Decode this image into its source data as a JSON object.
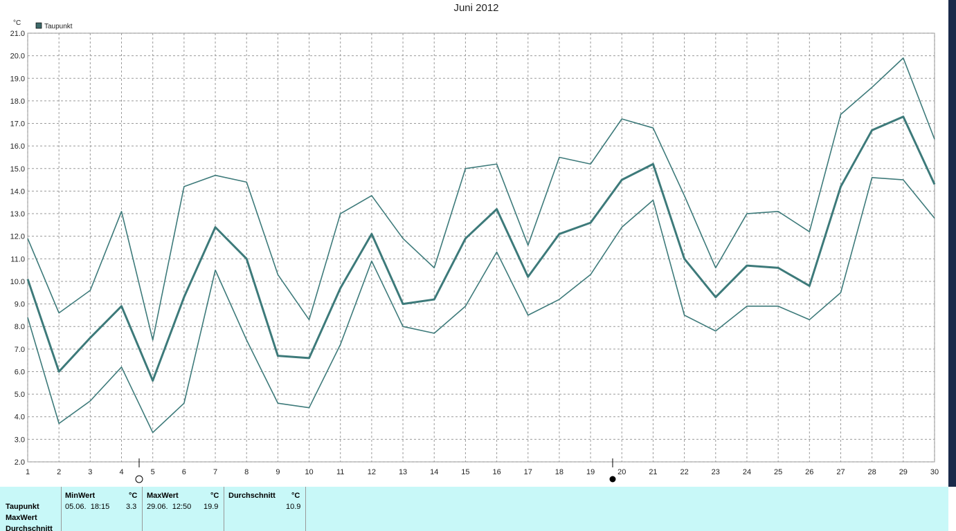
{
  "chart_data": {
    "type": "line",
    "title": "Juni 2012",
    "y_unit": "°C",
    "x": [
      1,
      2,
      3,
      4,
      5,
      6,
      7,
      8,
      9,
      10,
      11,
      12,
      13,
      14,
      15,
      16,
      17,
      18,
      19,
      20,
      21,
      22,
      23,
      24,
      25,
      26,
      27,
      28,
      29,
      30
    ],
    "series": [
      {
        "name": "Taupunkt",
        "color": "#3d7a7a",
        "width": 3,
        "values": [
          10.1,
          6.0,
          7.5,
          8.9,
          5.6,
          9.3,
          12.4,
          11.0,
          6.7,
          6.6,
          9.7,
          12.1,
          9.0,
          9.2,
          11.9,
          13.2,
          10.2,
          12.1,
          12.6,
          14.5,
          15.2,
          11.0,
          9.3,
          10.7,
          10.6,
          9.8,
          14.2,
          16.7,
          17.3,
          14.3
        ]
      },
      {
        "color": "#3d7a7a",
        "width": 1.6,
        "values": [
          11.9,
          8.6,
          9.6,
          13.1,
          7.4,
          14.2,
          14.7,
          14.4,
          10.3,
          8.3,
          13.0,
          13.8,
          11.9,
          10.6,
          15.0,
          15.2,
          11.6,
          15.5,
          15.2,
          17.2,
          16.8,
          13.8,
          10.6,
          13.0,
          13.1,
          12.2,
          17.4,
          18.6,
          19.9,
          16.3
        ]
      },
      {
        "color": "#3d7a7a",
        "width": 1.6,
        "values": [
          8.4,
          3.7,
          4.7,
          6.2,
          3.3,
          4.6,
          10.5,
          7.4,
          4.6,
          4.4,
          7.2,
          10.9,
          8.0,
          7.7,
          8.9,
          11.3,
          8.5,
          9.2,
          10.3,
          12.4,
          13.6,
          8.5,
          7.8,
          8.9,
          8.9,
          8.3,
          9.5,
          14.6,
          14.5,
          12.8
        ]
      }
    ],
    "xlim": [
      1,
      30
    ],
    "xticks": [
      1,
      2,
      3,
      4,
      5,
      6,
      7,
      8,
      9,
      10,
      11,
      12,
      13,
      14,
      15,
      16,
      17,
      18,
      19,
      20,
      21,
      22,
      23,
      24,
      25,
      26,
      27,
      28,
      29,
      30
    ],
    "ylim": [
      2,
      21
    ],
    "yticks": [
      {
        "value": 2,
        "label": "2.0"
      },
      {
        "value": 3,
        "label": "3.0"
      },
      {
        "value": 4,
        "label": "4.0"
      },
      {
        "value": 5,
        "label": "5.0"
      },
      {
        "value": 6,
        "label": "6.0"
      },
      {
        "value": 7,
        "label": "7.0"
      },
      {
        "value": 8,
        "label": "8.0"
      },
      {
        "value": 9,
        "label": "9.0"
      },
      {
        "value": 10,
        "label": "10.0"
      },
      {
        "value": 11,
        "label": "11.0"
      },
      {
        "value": 12,
        "label": "12.0"
      },
      {
        "value": 13,
        "label": "13.0"
      },
      {
        "value": 14,
        "label": "14.0"
      },
      {
        "value": 15,
        "label": "15.0"
      },
      {
        "value": 16,
        "label": "16.0"
      },
      {
        "value": 17,
        "label": "17.0"
      },
      {
        "value": 18,
        "label": "18.0"
      },
      {
        "value": 19,
        "label": "19.0"
      },
      {
        "value": 20,
        "label": "20.0"
      },
      {
        "value": 21,
        "label": "21.0"
      }
    ],
    "grid": true,
    "legend": "top-left"
  },
  "stats": {
    "row_labels": [
      "Taupunkt",
      "MaxWert",
      "Durchschnitt"
    ],
    "columns": [
      {
        "header": "MinWert",
        "unit": "°C",
        "time": "05.06.  18:15",
        "value": "3.3"
      },
      {
        "header": "MaxWert",
        "unit": "°C",
        "time": "29.06.  12:50",
        "value": "19.9"
      },
      {
        "header": "Durchschnitt",
        "unit": "°C",
        "value": "10.9"
      }
    ]
  }
}
